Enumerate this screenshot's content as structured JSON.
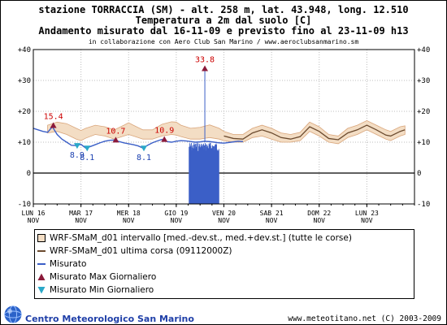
{
  "chart_data": {
    "type": "line",
    "title": "stazione TORRACCIA (SM) - alt. 258 m, lat. 43.948, long. 12.510",
    "subtitle": "Temperatura a 2m dal suolo [C]",
    "subtitle2": "Andamento misurato dal 16-11-09 e previsto fino al 23-11-09 h13",
    "credit": "in collaborazione con Aero Club San Marino / www.aeroclubsanmarino.sm",
    "ylim": [
      -10,
      40
    ],
    "yticks": [
      "+40",
      "+30",
      "+20",
      "+10",
      "0",
      "-10"
    ],
    "xlim": [
      0,
      8.0
    ],
    "grid": true,
    "days": [
      {
        "day": "LUN",
        "num": "16",
        "mon": "NOV"
      },
      {
        "day": "MAR",
        "num": "17",
        "mon": "NOV"
      },
      {
        "day": "MER",
        "num": "18",
        "mon": "NOV"
      },
      {
        "day": "GIO",
        "num": "19",
        "mon": "NOV"
      },
      {
        "day": "VEN",
        "num": "20",
        "mon": "NOV"
      },
      {
        "day": "SAB",
        "num": "21",
        "mon": "NOV"
      },
      {
        "day": "DOM",
        "num": "22",
        "mon": "NOV"
      },
      {
        "day": "LUN",
        "num": "23",
        "mon": "NOV"
      }
    ],
    "series": [
      {
        "name": "Misurato",
        "color": "#3b5fc7",
        "x": [
          0,
          0.1,
          0.2,
          0.3,
          0.4,
          0.5,
          0.6,
          0.7,
          0.8,
          0.9,
          1.0,
          1.1,
          1.2,
          1.3,
          1.4,
          1.5,
          1.6,
          1.7,
          1.8,
          1.9,
          2.0,
          2.1,
          2.2,
          2.3,
          2.4,
          2.5,
          2.6,
          2.7,
          2.8,
          2.9,
          3.0,
          3.1,
          3.2,
          3.3,
          3.4,
          3.5,
          3.6,
          3.7,
          3.8,
          3.9,
          4.0,
          4.1,
          4.2,
          4.3,
          4.4
        ],
        "y": [
          14.5,
          14.0,
          13.5,
          13.2,
          15.0,
          12.5,
          11.0,
          10.0,
          9.0,
          8.9,
          9.3,
          8.1,
          8.6,
          9.2,
          9.8,
          10.3,
          10.6,
          10.7,
          10.2,
          9.8,
          9.5,
          9.2,
          8.8,
          8.1,
          9.0,
          9.8,
          10.4,
          10.9,
          10.2,
          10.0,
          10.3,
          10.5,
          10.4,
          10.2,
          10.0,
          10.1,
          10.3,
          10.2,
          10.0,
          9.8,
          9.7,
          9.9,
          10.1,
          10.3,
          10.2
        ]
      }
    ],
    "outage": {
      "x_from": 3.27,
      "x_to": 3.9,
      "y_low": -10,
      "y_high": 10
    },
    "spike": {
      "x": 3.6,
      "y": 33.8
    },
    "band": {
      "name": "WRF-SMaM_d01 intervallo [med.-dev.st., med.+dev.st.] (tutte le corse)",
      "x": [
        0.3,
        0.5,
        0.7,
        0.9,
        1.0,
        1.1,
        1.3,
        1.5,
        1.7,
        1.9,
        2.0,
        2.1,
        2.3,
        2.5,
        2.7,
        2.9,
        3.0,
        3.1,
        3.3,
        3.5,
        3.7,
        3.9,
        4.0,
        4.2,
        4.4,
        4.6,
        4.8,
        5.0,
        5.2,
        5.4,
        5.6,
        5.8,
        6.0,
        6.2,
        6.4,
        6.6,
        6.8,
        7.0,
        7.2,
        7.4,
        7.5,
        7.7,
        7.8
      ],
      "upper": [
        15.5,
        16.5,
        16.0,
        14.5,
        13.8,
        14.5,
        15.5,
        15.0,
        14.0,
        15.5,
        16.3,
        15.5,
        14.0,
        14.0,
        15.8,
        16.6,
        16.5,
        15.5,
        14.5,
        14.8,
        15.6,
        14.5,
        13.5,
        12.5,
        12.5,
        14.5,
        15.5,
        14.5,
        13.0,
        12.5,
        13.2,
        16.5,
        15.0,
        12.5,
        12.0,
        14.5,
        15.5,
        17.0,
        15.5,
        14.0,
        13.5,
        15.0,
        15.3
      ],
      "lower": [
        13.0,
        13.5,
        12.5,
        11.0,
        10.5,
        11.3,
        12.5,
        12.0,
        11.0,
        12.0,
        12.5,
        12.0,
        11.0,
        11.0,
        12.0,
        12.5,
        12.3,
        11.8,
        11.0,
        11.0,
        11.5,
        11.0,
        10.5,
        10.0,
        10.0,
        11.5,
        12.0,
        11.0,
        10.0,
        10.0,
        10.5,
        13.5,
        12.0,
        10.0,
        9.5,
        11.5,
        12.5,
        14.0,
        12.5,
        11.0,
        10.5,
        12.0,
        12.5
      ]
    },
    "last_run": {
      "name": "WRF-SMaM_d01 ultima corsa (09112000Z)",
      "color": "#6b4a2e",
      "x": [
        4.0,
        4.2,
        4.4,
        4.6,
        4.8,
        5.0,
        5.2,
        5.4,
        5.6,
        5.8,
        6.0,
        6.2,
        6.4,
        6.6,
        6.8,
        7.0,
        7.2,
        7.4,
        7.5,
        7.7,
        7.8
      ],
      "y": [
        12.0,
        11.2,
        11.0,
        13.0,
        14.0,
        13.0,
        11.5,
        11.0,
        11.8,
        15.0,
        13.5,
        11.2,
        10.8,
        13.0,
        14.0,
        15.5,
        14.0,
        12.3,
        12.0,
        13.5,
        14.0
      ]
    },
    "max_markers": {
      "name": "Misurato Max Giornaliero",
      "color": "#8b1a3a",
      "points": [
        {
          "x": 0.42,
          "y": 15.4,
          "label": "15.4"
        },
        {
          "x": 1.73,
          "y": 10.7,
          "label": "10.7"
        },
        {
          "x": 2.75,
          "y": 10.9,
          "label": "10.9"
        },
        {
          "x": 3.6,
          "y": 33.8,
          "label": "33.8"
        }
      ]
    },
    "min_markers": {
      "name": "Misurato Min Giornaliero",
      "color": "#2aa8c8",
      "points": [
        {
          "x": 0.92,
          "y": 8.9,
          "label": "8.9"
        },
        {
          "x": 1.13,
          "y": 8.1,
          "label": "8.1"
        },
        {
          "x": 2.32,
          "y": 8.1,
          "label": "8.1"
        }
      ]
    }
  },
  "footer": {
    "left": "Centro Meteorologico San Marino",
    "right": "www.meteotitano.net (C) 2003-2009"
  },
  "colors": {
    "band_fill": "#f3ddc4",
    "band_edge": "#d9a57a",
    "max_label": "#cc0000",
    "min_label": "#1a3fb0",
    "grid": "#bdbdbd"
  }
}
